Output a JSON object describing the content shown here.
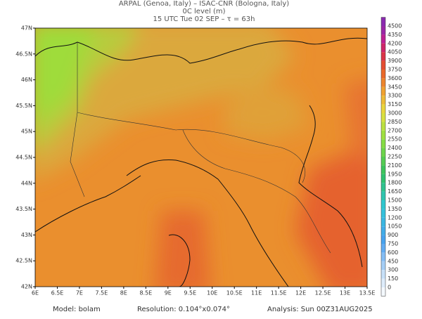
{
  "header": {
    "line1": "ARPAL (Genoa, Italy)  –  ISAC-CNR (Bologna, Italy)",
    "line2": "0C level (m)",
    "line3": "15 UTC Tue 02 SEP  –  τ = 63h"
  },
  "map": {
    "lat_labels": [
      "47N",
      "46.5N",
      "46N",
      "45.5N",
      "45N",
      "44.5N",
      "44N",
      "43.5N",
      "43N",
      "42.5N",
      "42N"
    ],
    "lon_labels": [
      "6E",
      "6.5E",
      "7E",
      "7.5E",
      "8E",
      "8.5E",
      "9E",
      "9.5E",
      "10E",
      "10.5E",
      "11E",
      "11.5E",
      "12E",
      "12.5E",
      "13E",
      "13.5E"
    ],
    "colorbar": [
      4500,
      4350,
      4200,
      4050,
      3900,
      3750,
      3600,
      3450,
      3300,
      3150,
      3000,
      2850,
      2700,
      2550,
      2400,
      2250,
      2100,
      1950,
      1800,
      1650,
      1500,
      1350,
      1200,
      1050,
      900,
      750,
      600,
      450,
      300,
      150,
      0
    ]
  },
  "footer": {
    "model": "Model: bolam",
    "resolution": "Resolution: 0.104°x0.074°",
    "analysis": "Analysis: Sun 00Z31AUG2025"
  }
}
